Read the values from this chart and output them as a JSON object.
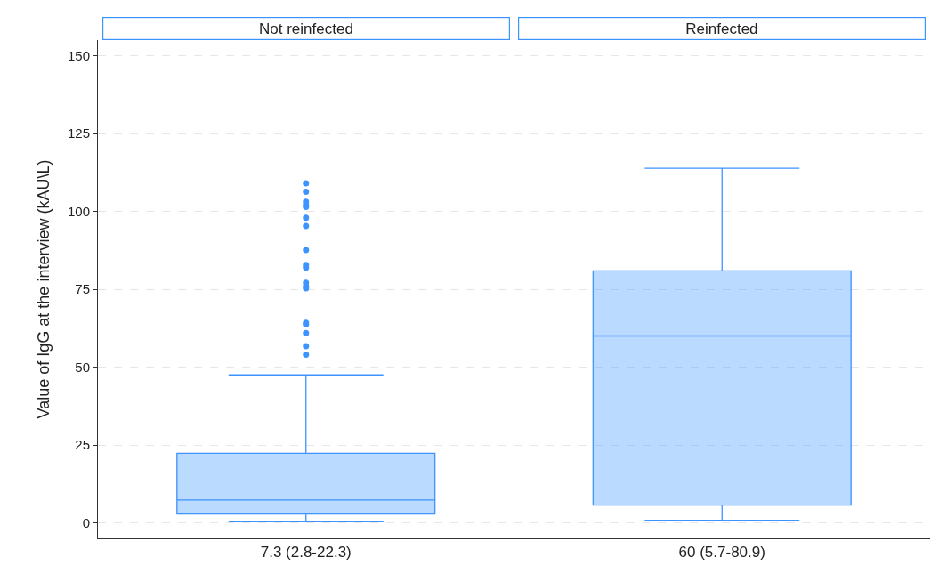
{
  "chart_data": {
    "type": "box",
    "ylabel": "Value of IgG at the interview (kAU\\L)",
    "categories": [
      "7.3 (2.8-22.3)",
      "60 (5.7-80.9)"
    ],
    "color": "#3d94ff",
    "ylim": [
      -5,
      155
    ],
    "yticks": [
      0,
      25,
      50,
      75,
      100,
      125,
      150
    ],
    "grid": "y",
    "marker": "circle",
    "annotations": [
      "Not reinfected",
      "Reinfected"
    ],
    "boxes": [
      {
        "low": 0.3,
        "q1": 2.8,
        "median": 7.3,
        "q3": 22.3,
        "high": 47.5,
        "outliers": [
          109,
          106.3,
          103.1,
          102.1,
          101.4,
          97.9,
          95.3,
          87.6,
          82.8,
          81.9,
          77.1,
          75.9,
          75.3,
          64.2,
          63.7,
          60.9,
          56.7,
          54
        ]
      },
      {
        "low": 0.8,
        "q1": 5.7,
        "median": 60,
        "q3": 80.9,
        "high": 113.8
      }
    ]
  }
}
